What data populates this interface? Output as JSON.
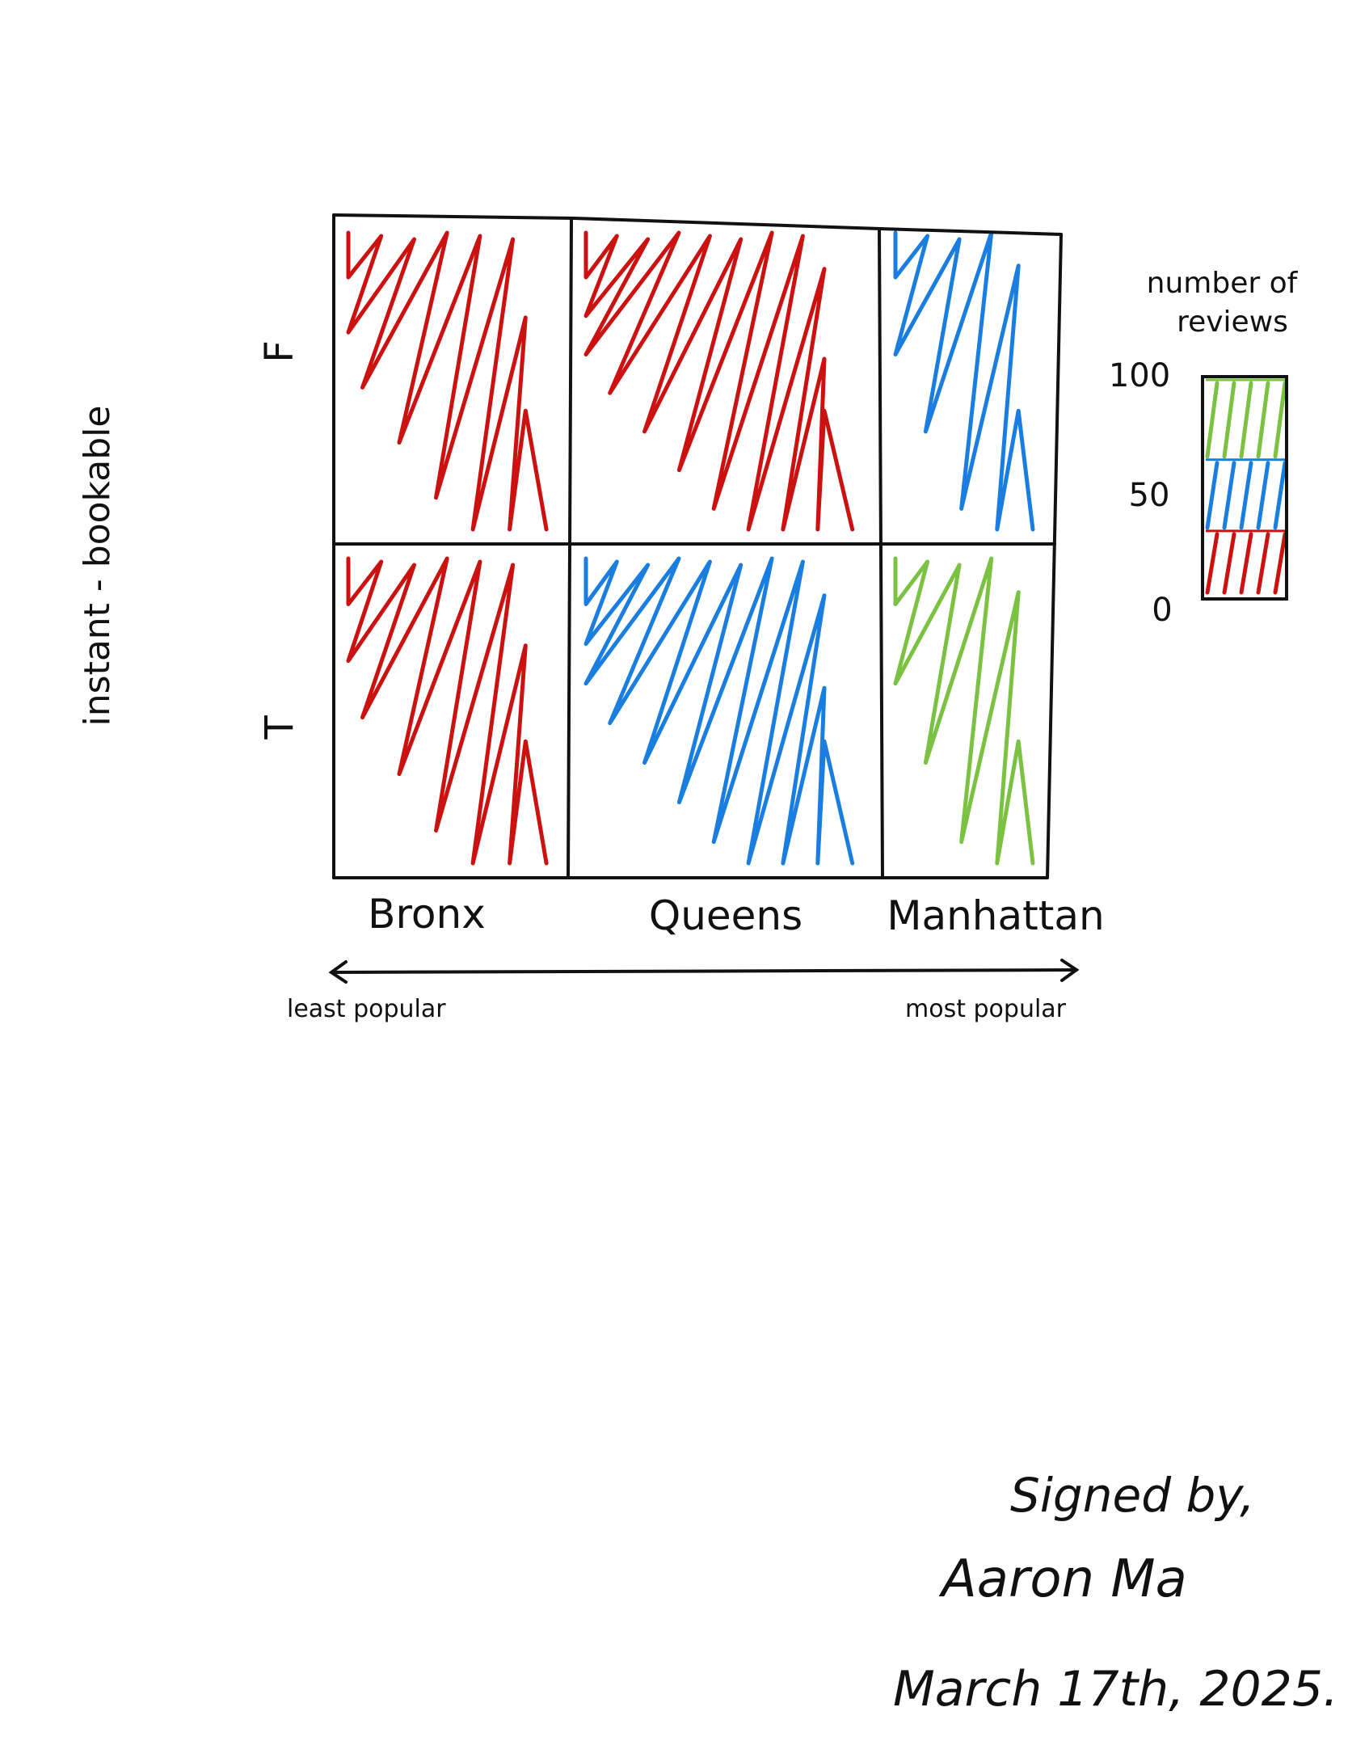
{
  "chart_data": {
    "type": "heatmap",
    "title": "",
    "xlabel": "",
    "ylabel": "instant - bookable",
    "x_categories": [
      "Bronx",
      "Queens",
      "Manhattan"
    ],
    "y_categories": [
      "F",
      "T"
    ],
    "x_axis_left_note": "least popular",
    "x_axis_right_note": "most popular",
    "colorbar": {
      "title_line1": "number of",
      "title_line2": "reviews",
      "ticks": [
        "100",
        "50",
        "0"
      ],
      "range": [
        0,
        100
      ],
      "bands": [
        {
          "from": 0,
          "to": 30,
          "color": "#cc1111"
        },
        {
          "from": 30,
          "to": 63,
          "color": "#1a7de0"
        },
        {
          "from": 63,
          "to": 100,
          "color": "#7cc242"
        }
      ]
    },
    "cells": [
      {
        "x": "Bronx",
        "y": "F",
        "level": "low",
        "color": "#cc1111"
      },
      {
        "x": "Queens",
        "y": "F",
        "level": "low",
        "color": "#cc1111"
      },
      {
        "x": "Manhattan",
        "y": "F",
        "level": "medium",
        "color": "#1a7de0"
      },
      {
        "x": "Bronx",
        "y": "T",
        "level": "low",
        "color": "#cc1111"
      },
      {
        "x": "Queens",
        "y": "T",
        "level": "medium",
        "color": "#1a7de0"
      },
      {
        "x": "Manhattan",
        "y": "T",
        "level": "high",
        "color": "#7cc242"
      }
    ]
  },
  "signature": {
    "line1": "Signed by,",
    "line2": "Aaron Ma",
    "line3": "March 17th, 2025."
  }
}
